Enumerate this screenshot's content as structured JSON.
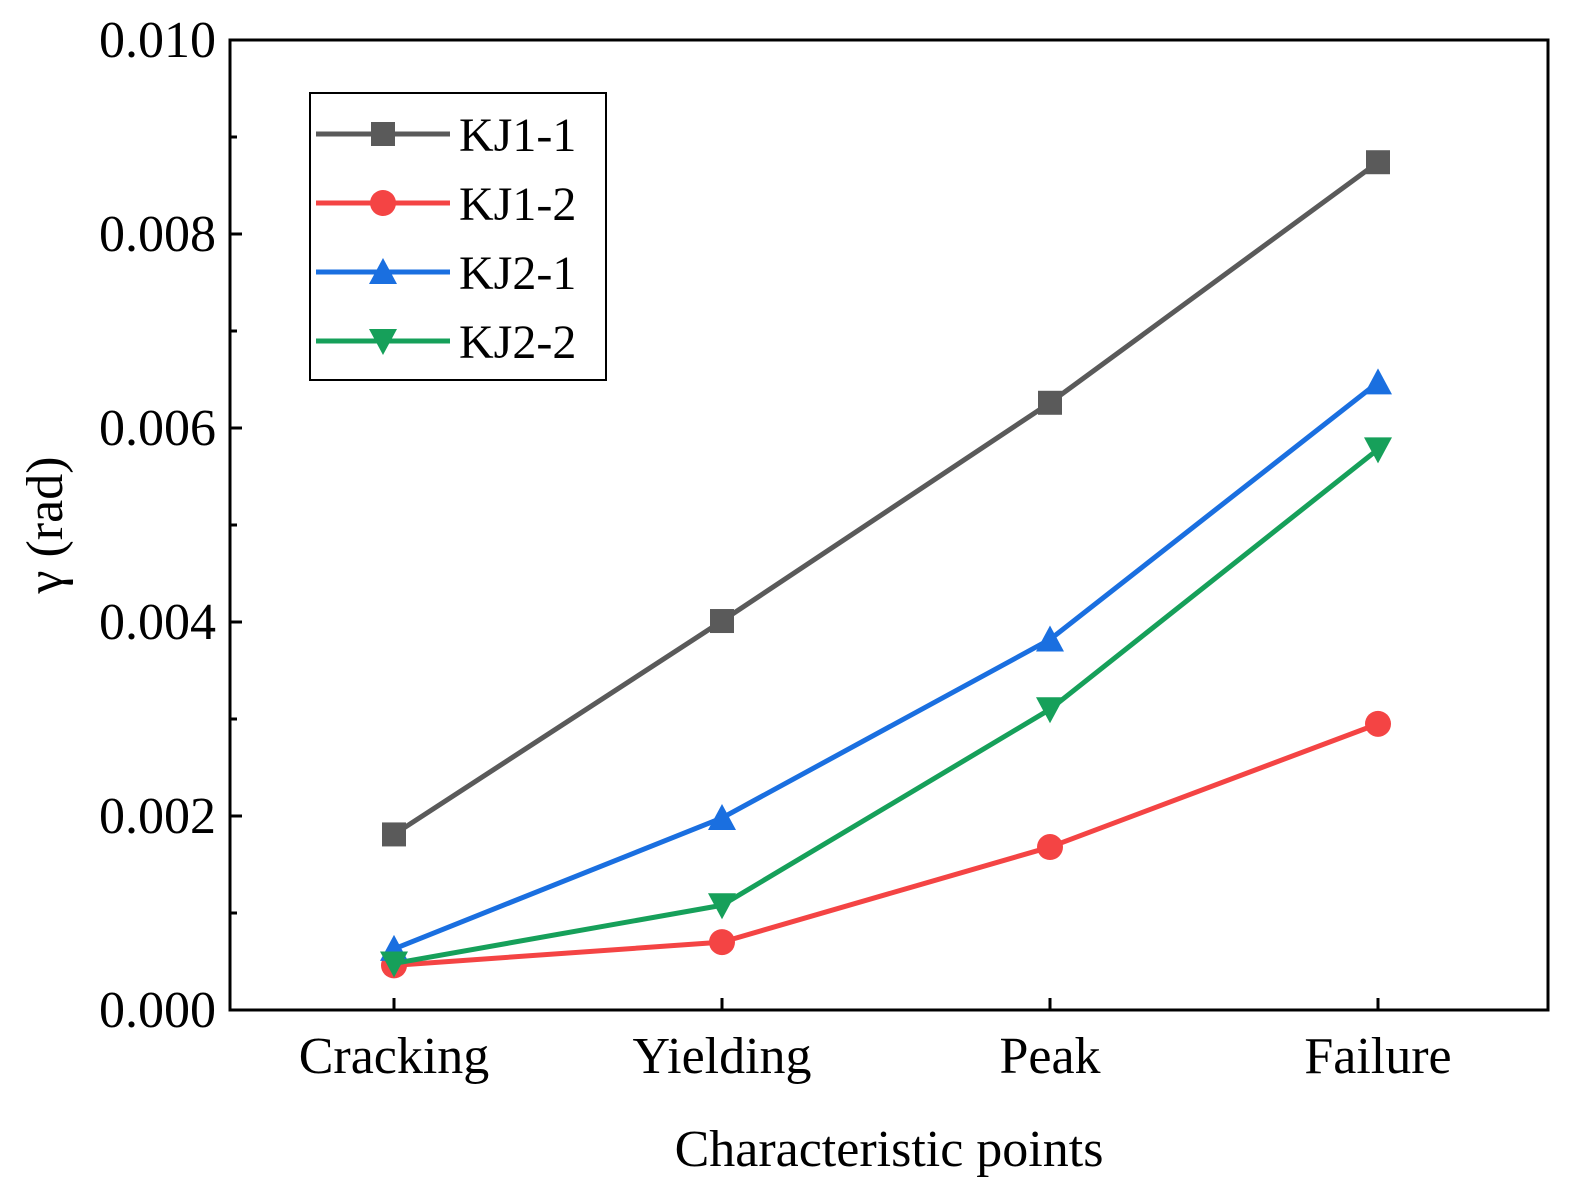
{
  "chart_data": {
    "type": "line",
    "xlabel": "Characteristic points",
    "ylabel": "γ (rad)",
    "categories": [
      "Cracking",
      "Yielding",
      "Peak",
      "Failure"
    ],
    "ylim": [
      0.0,
      0.01
    ],
    "yticks": [
      "0.000",
      "0.002",
      "0.004",
      "0.006",
      "0.008",
      "0.010"
    ],
    "grid": false,
    "legend_position": "top-left",
    "series": [
      {
        "name": "KJ1-1",
        "color": "#5a5a5a",
        "marker": "square",
        "values": [
          0.00181,
          0.00401,
          0.00626,
          0.00874
        ]
      },
      {
        "name": "KJ1-2",
        "color": "#f44444",
        "marker": "circle",
        "values": [
          0.00046,
          0.0007,
          0.00168,
          0.00295
        ]
      },
      {
        "name": "KJ2-1",
        "color": "#1a6fe0",
        "marker": "triangle-up",
        "values": [
          0.00063,
          0.00198,
          0.00382,
          0.00647
        ]
      },
      {
        "name": "KJ2-2",
        "color": "#16a05a",
        "marker": "triangle-down",
        "values": [
          0.00048,
          0.00108,
          0.0031,
          0.00578
        ]
      }
    ]
  }
}
